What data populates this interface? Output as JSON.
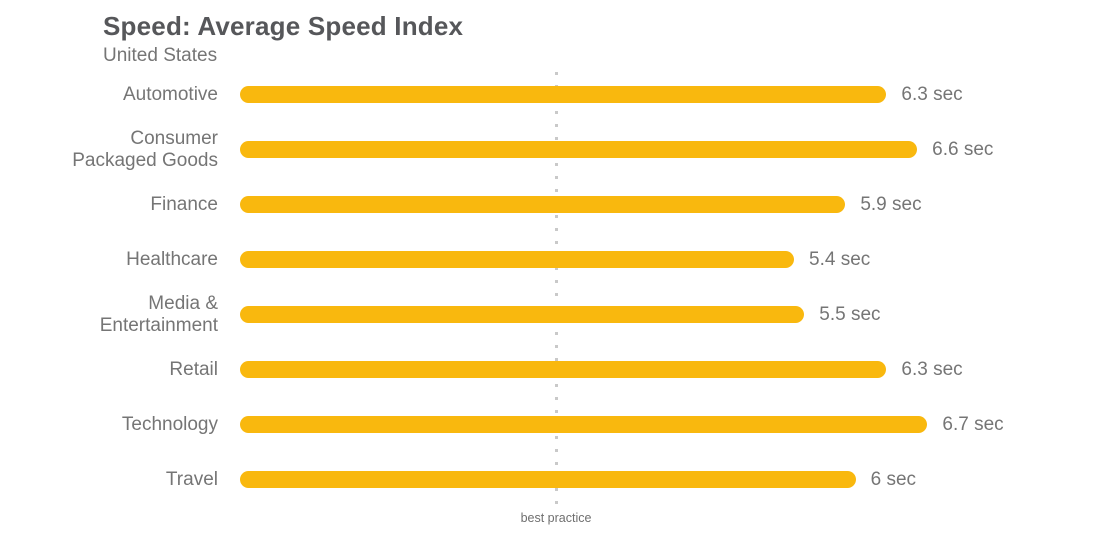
{
  "header": {
    "title": "Speed: Average Speed Index",
    "subtitle": "United States"
  },
  "chart_data": {
    "type": "bar",
    "orientation": "horizontal",
    "title": "Speed: Average Speed Index",
    "subtitle": "United States",
    "unit": "sec",
    "categories": [
      "Automotive",
      "Consumer Packaged Goods",
      "Finance",
      "Healthcare",
      "Media & Entertainment",
      "Retail",
      "Technology",
      "Travel"
    ],
    "values": [
      6.3,
      6.6,
      5.9,
      5.4,
      5.5,
      6.3,
      6.7,
      6
    ],
    "rows": [
      {
        "category": "Automotive",
        "value": 6.3,
        "display": "6.3 sec"
      },
      {
        "category": "Consumer Packaged Goods",
        "value": 6.6,
        "display": "6.6 sec"
      },
      {
        "category": "Finance",
        "value": 5.9,
        "display": "5.9 sec"
      },
      {
        "category": "Healthcare",
        "value": 5.4,
        "display": "5.4 sec"
      },
      {
        "category": "Media & Entertainment",
        "value": 5.5,
        "display": "5.5 sec"
      },
      {
        "category": "Retail",
        "value": 6.3,
        "display": "6.3 sec"
      },
      {
        "category": "Technology",
        "value": 6.7,
        "display": "6.7 sec"
      },
      {
        "category": "Travel",
        "value": 6,
        "display": "6 sec"
      }
    ],
    "annotation": {
      "label": "best practice",
      "value_sec": 3
    },
    "xlim": [
      0,
      8.4
    ],
    "grid": false,
    "legend": false,
    "colors": {
      "bar": "#F9B80E",
      "reference_line": "#c9c9c9",
      "text": "#757575",
      "title": "#56575a"
    }
  }
}
